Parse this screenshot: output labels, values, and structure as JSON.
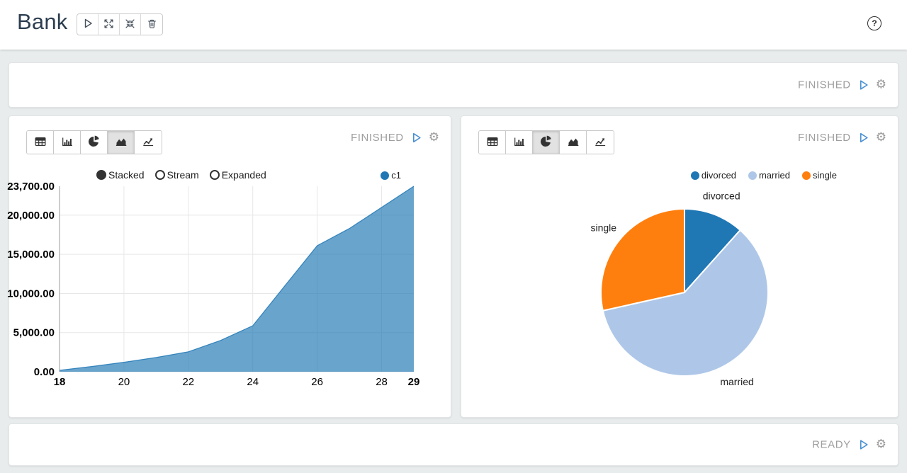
{
  "header": {
    "title": "Bank",
    "toolbar": {
      "run_label": "run-all",
      "expand_label": "expand-all",
      "collapse_label": "collapse-all",
      "delete_label": "delete"
    },
    "help_label": "?"
  },
  "top_row": {
    "status": "FINISHED"
  },
  "bottom_row": {
    "status": "READY"
  },
  "left_panel": {
    "status": "FINISHED",
    "chart_types": [
      "table",
      "bar",
      "pie",
      "area",
      "line"
    ],
    "selected_chart_type": "area",
    "modes": [
      {
        "label": "Stacked",
        "selected": true
      },
      {
        "label": "Stream",
        "selected": false
      },
      {
        "label": "Expanded",
        "selected": false
      }
    ],
    "legend": [
      {
        "label": "c1",
        "color": "#1f77b4"
      }
    ]
  },
  "right_panel": {
    "status": "FINISHED",
    "chart_types": [
      "table",
      "bar",
      "pie",
      "area",
      "line"
    ],
    "selected_chart_type": "pie",
    "legend": [
      {
        "label": "divorced",
        "color": "#1f77b4"
      },
      {
        "label": "married",
        "color": "#aec7e8"
      },
      {
        "label": "single",
        "color": "#ff7f0e"
      }
    ]
  },
  "chart_data": [
    {
      "type": "area",
      "mode": "Stacked",
      "title": "",
      "xlabel": "",
      "ylabel": "",
      "x": [
        18,
        19,
        20,
        21,
        22,
        23,
        24,
        25,
        26,
        27,
        28,
        29
      ],
      "series": [
        {
          "name": "c1",
          "color": "#1f77b4",
          "values": [
            180,
            670,
            1210,
            1820,
            2550,
            4000,
            5880,
            11000,
            16100,
            18300,
            21000,
            23700
          ]
        }
      ],
      "xlim": [
        18,
        29
      ],
      "ylim": [
        0,
        23700
      ],
      "xticks": [
        18,
        20,
        22,
        24,
        26,
        28,
        29
      ],
      "yticks": [
        0,
        5000,
        10000,
        15000,
        20000,
        23700
      ],
      "ytick_labels": [
        "0.00",
        "5,000.00",
        "10,000.00",
        "15,000.00",
        "20,000.00",
        "23,700.00"
      ],
      "grid": true,
      "legend_position": "top-right"
    },
    {
      "type": "pie",
      "title": "",
      "labels": [
        "divorced",
        "married",
        "single"
      ],
      "values": [
        11.6,
        59.9,
        28.5
      ],
      "colors": [
        "#1f77b4",
        "#aec7e8",
        "#ff7f0e"
      ],
      "legend_position": "top-right",
      "slice_border_color": "#ffffff"
    }
  ]
}
